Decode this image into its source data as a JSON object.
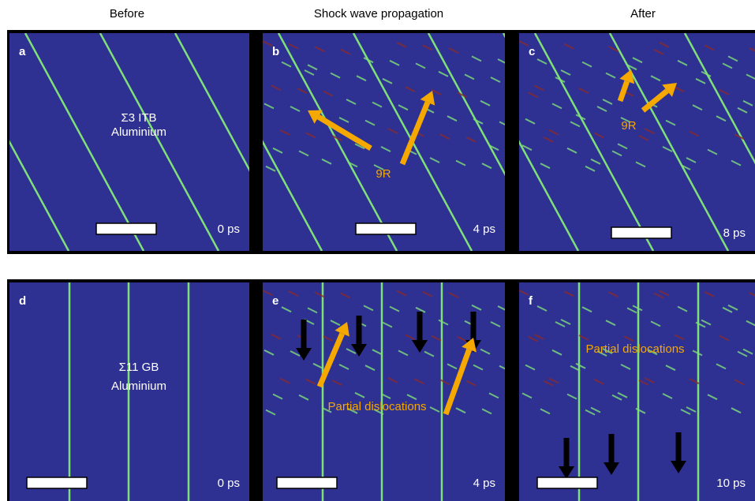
{
  "headers": [
    "Before",
    "Shock wave propagation",
    "After"
  ],
  "panels": [
    {
      "label": "a",
      "annotations": [
        "Σ3 ITB",
        "Aluminium"
      ],
      "time": "0 ps"
    },
    {
      "label": "b",
      "annotations": [
        "9R"
      ],
      "time": "4 ps"
    },
    {
      "label": "c",
      "annotations": [
        "9R"
      ],
      "time": "8 ps"
    },
    {
      "label": "d",
      "annotations": [
        "Σ11 GB",
        "Aluminium"
      ],
      "time": "0 ps"
    },
    {
      "label": "e",
      "annotations": [
        "Partial dislocations"
      ],
      "time": "4 ps"
    },
    {
      "label": "f",
      "annotations": [
        "Partial dislocations"
      ],
      "time": "10 ps"
    }
  ]
}
